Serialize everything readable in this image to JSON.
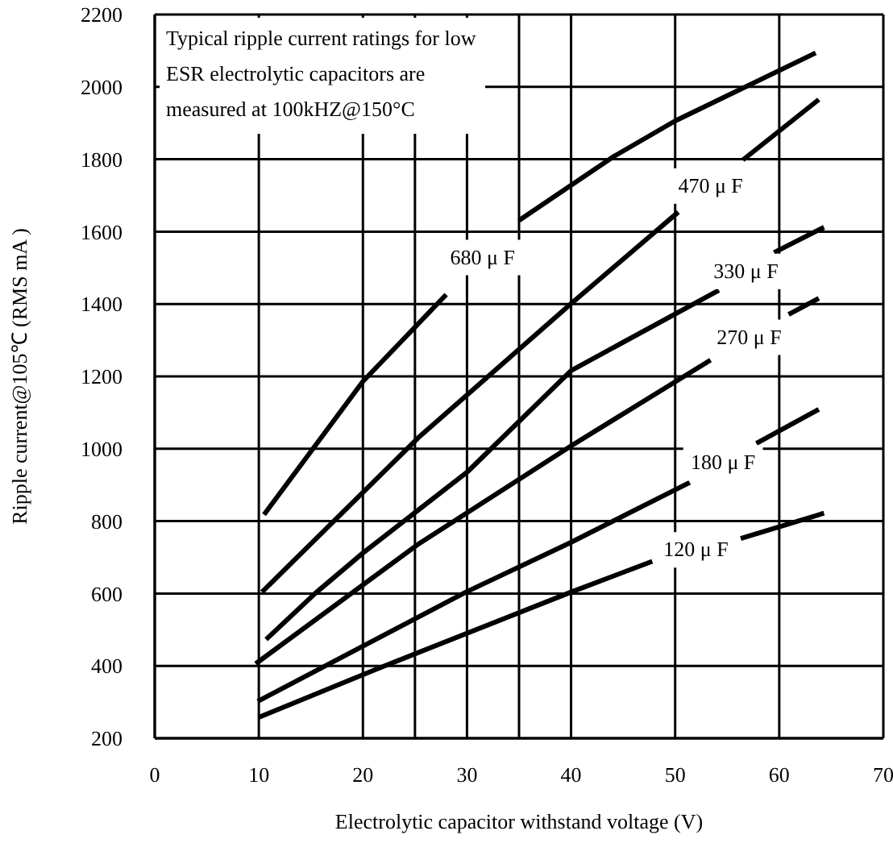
{
  "chart_data": {
    "type": "line",
    "xlabel": "Electrolytic capacitor withstand voltage (V)",
    "ylabel": "Ripple current@105℃  (RMS mA )",
    "annotations": [
      "Typical ripple current ratings for low\nESR electrolytic capacitors are\nmeasured at 100kHZ@150°C"
    ],
    "xlim": [
      0,
      70
    ],
    "xticks": [
      0,
      10,
      20,
      {
        "value": 25,
        "label": null
      },
      30,
      {
        "value": 35,
        "label": null
      },
      40,
      50,
      60,
      70
    ],
    "ylim": [
      200,
      2200
    ],
    "yticks": [
      200,
      400,
      600,
      800,
      1000,
      1200,
      1400,
      1600,
      1800,
      2000,
      2200
    ],
    "grid": true,
    "legend": false,
    "series": [
      {
        "name": "680 μ F",
        "color": "#000000",
        "x": [
          10.5,
          15.2,
          20,
          28,
          31.5,
          35,
          44,
          50,
          63.5
        ],
        "values": [
          818,
          1000,
          1186,
          1426,
          null,
          1631,
          1806,
          1906,
          2094
        ]
      },
      {
        "name": "470 μ F",
        "color": "#000000",
        "x": [
          10.3,
          25.3,
          40,
          50.3,
          53.4,
          56.5,
          63.8
        ],
        "values": [
          604,
          1030,
          1401,
          1654,
          null,
          1798,
          1965
        ]
      },
      {
        "name": "330 μ F",
        "color": "#000000",
        "x": [
          10.7,
          15.4,
          20,
          30,
          40,
          54.2,
          56.8,
          59.5,
          64.3
        ],
        "values": [
          473,
          600,
          712,
          935,
          1216,
          1438,
          null,
          1542,
          1612
        ]
      },
      {
        "name": "270 μ F",
        "color": "#000000",
        "x": [
          9.7,
          25.4,
          40,
          53.4,
          57.1,
          60.9,
          63.8
        ],
        "values": [
          406,
          738,
          1008,
          1245,
          null,
          1371,
          1416
        ]
      },
      {
        "name": "180 μ F",
        "color": "#000000",
        "x": [
          9.9,
          29.9,
          39.9,
          51.4,
          54.6,
          57.8,
          63.8
        ],
        "values": [
          302,
          604,
          740,
          907,
          null,
          1015,
          1109
        ]
      },
      {
        "name": "120 μ F",
        "color": "#000000",
        "x": [
          10,
          21.4,
          40,
          47.8,
          52,
          56.3,
          64.3
        ],
        "values": [
          258,
          392,
          604,
          689,
          null,
          752,
          822
        ]
      }
    ]
  }
}
